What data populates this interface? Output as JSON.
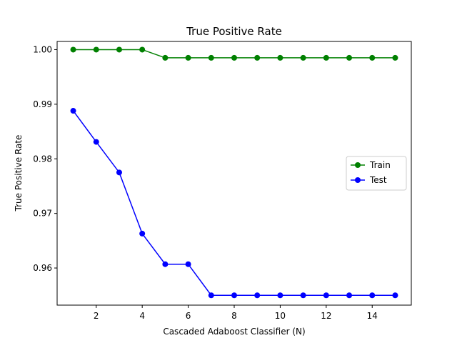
{
  "chart_data": {
    "type": "line",
    "title": "True Positive Rate",
    "xlabel": "Cascaded Adaboost Classifier (N)",
    "ylabel": "True Positive Rate",
    "x": [
      1,
      2,
      3,
      4,
      5,
      6,
      7,
      8,
      9,
      10,
      11,
      12,
      13,
      14,
      15
    ],
    "xlim": [
      0.3,
      15.7
    ],
    "ylim": [
      0.9532,
      1.0015
    ],
    "xticks": [
      2,
      4,
      6,
      8,
      10,
      12,
      14
    ],
    "xtick_labels": [
      "2",
      "4",
      "6",
      "8",
      "10",
      "12",
      "14"
    ],
    "yticks": [
      0.96,
      0.97,
      0.98,
      0.99,
      1.0
    ],
    "ytick_labels": [
      "0.96",
      "0.97",
      "0.98",
      "0.99",
      "1.00"
    ],
    "grid": false,
    "legend_position": "center-right",
    "series": [
      {
        "name": "Train",
        "color": "#008000",
        "marker": "circle",
        "values": [
          1.0,
          1.0,
          1.0,
          1.0,
          0.9985,
          0.9985,
          0.9985,
          0.9985,
          0.9985,
          0.9985,
          0.9985,
          0.9985,
          0.9985,
          0.9985,
          0.9985
        ]
      },
      {
        "name": "Test",
        "color": "#0000ff",
        "marker": "circle",
        "values": [
          0.9888,
          0.9831,
          0.9775,
          0.9663,
          0.9607,
          0.9607,
          0.955,
          0.955,
          0.955,
          0.955,
          0.955,
          0.955,
          0.955,
          0.955,
          0.955
        ]
      }
    ]
  }
}
